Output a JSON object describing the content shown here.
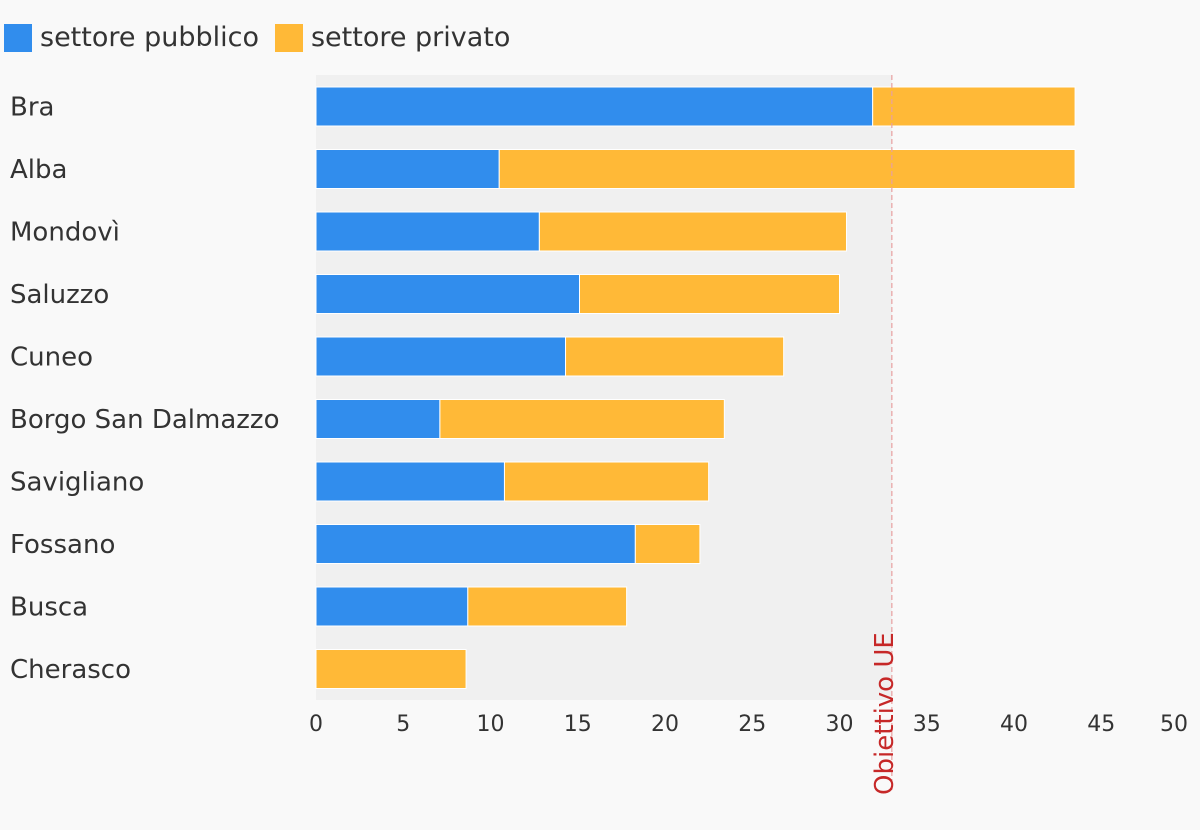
{
  "legend": {
    "items": [
      {
        "label": "settore pubblico",
        "color": "#318ded"
      },
      {
        "label": "settore privato",
        "color": "#ffb937"
      }
    ]
  },
  "chart_data": {
    "type": "bar",
    "orientation": "horizontal",
    "stacked": true,
    "categories": [
      "Bra",
      "Alba",
      "Mondovì",
      "Saluzzo",
      "Cuneo",
      "Borgo San Dalmazzo",
      "Savigliano",
      "Fossano",
      "Busca",
      "Cherasco"
    ],
    "series": [
      {
        "name": "settore pubblico",
        "color": "#318ded",
        "values": [
          31.9,
          10.5,
          12.8,
          15.1,
          14.3,
          7.1,
          10.8,
          18.3,
          8.7,
          0
        ]
      },
      {
        "name": "settore privato",
        "color": "#ffb937",
        "values": [
          11.6,
          33.0,
          17.6,
          14.9,
          12.5,
          16.3,
          11.7,
          3.7,
          9.1,
          8.6
        ]
      }
    ],
    "xlim": [
      0,
      50
    ],
    "xticks": [
      "0",
      "5",
      "10",
      "15",
      "20",
      "25",
      "30",
      "35",
      "40",
      "45",
      "50"
    ],
    "reference_line": {
      "value": 33,
      "label": "Obiettivo UE",
      "color": "#c62828"
    },
    "plot_background": "#f0f0f0",
    "legend_position": "top-left"
  }
}
